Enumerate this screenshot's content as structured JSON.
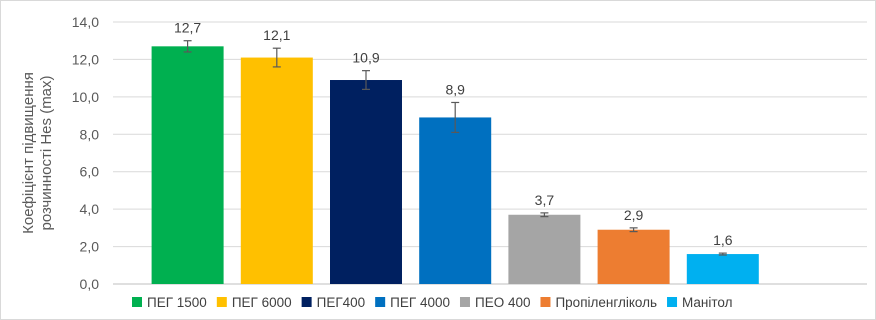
{
  "chart_data": {
    "type": "bar",
    "categories": [
      "ПЕГ 1500",
      "ПЕГ 6000",
      "ПЕГ400",
      "ПЕГ 4000",
      "ПЕО 400",
      "Пропіленгліколь",
      "Манітол"
    ],
    "values": [
      12.7,
      12.1,
      10.9,
      8.9,
      3.7,
      2.9,
      1.6
    ],
    "value_labels": [
      "12,7",
      "12,1",
      "10,9",
      "8,9",
      "3,7",
      "2,9",
      "1,6"
    ],
    "error": [
      0.3,
      0.5,
      0.5,
      0.8,
      0.1,
      0.1,
      0.05
    ],
    "colors": [
      "#00b050",
      "#ffc000",
      "#002060",
      "#0070c0",
      "#a5a5a5",
      "#ed7d31",
      "#00b0f0"
    ],
    "ylabel_lines": [
      "Коефіцієнт підвищення",
      "розчинності Hes (max)"
    ],
    "yticks": [
      "0,0",
      "2,0",
      "4,0",
      "6,0",
      "8,0",
      "10,0",
      "12,0",
      "14,0"
    ],
    "ylim": [
      0,
      14
    ],
    "grid": true,
    "legend_position": "bottom"
  }
}
